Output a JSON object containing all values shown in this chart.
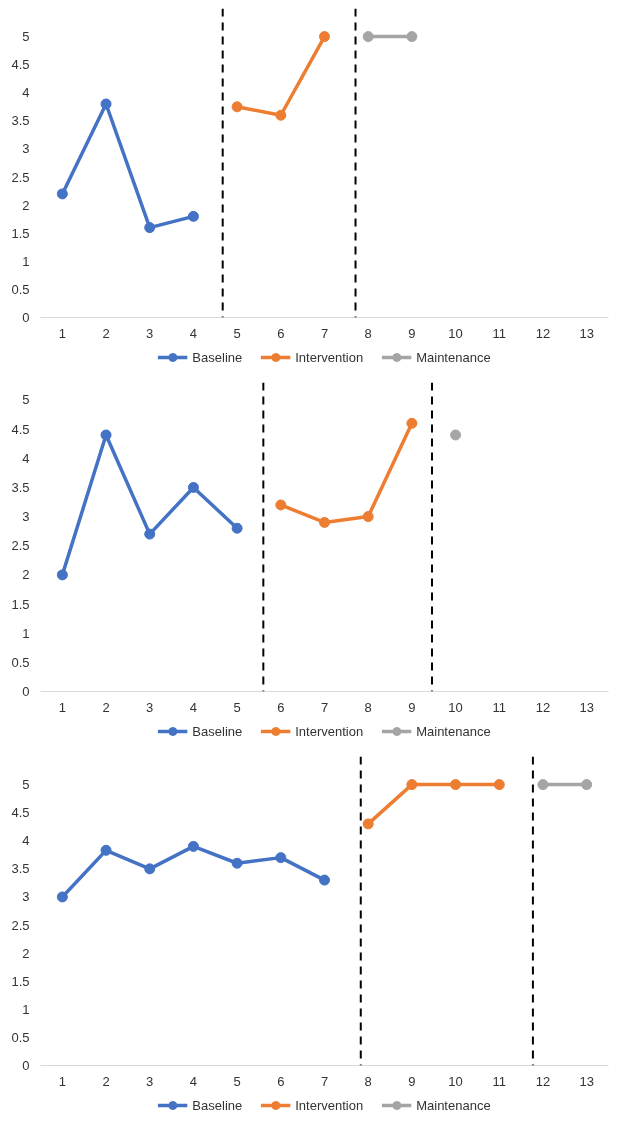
{
  "chart_data": [
    {
      "type": "line",
      "xlim": [
        0.5,
        13.5
      ],
      "xticks": [
        1,
        2,
        3,
        4,
        5,
        6,
        7,
        8,
        9,
        10,
        11,
        12,
        13
      ],
      "ylim": [
        0,
        5.5
      ],
      "yticks": [
        0,
        0.5,
        1,
        1.5,
        2,
        2.5,
        3,
        3.5,
        4,
        4.5,
        5
      ],
      "grid": false,
      "legend": "bottom",
      "marker": "circle",
      "line_style": "solid",
      "series": [
        {
          "name": "Baseline",
          "color": "#4472c4",
          "x": [
            1,
            2,
            3,
            4
          ],
          "values": [
            2.2,
            3.8,
            1.6,
            1.8
          ]
        },
        {
          "name": "Intervention",
          "color": "#ed7d31",
          "x": [
            5,
            6,
            7
          ],
          "values": [
            3.75,
            3.6,
            5
          ]
        },
        {
          "name": "Maintenance",
          "color": "#a5a5a5",
          "x": [
            8,
            9
          ],
          "values": [
            5,
            5
          ]
        }
      ],
      "ref_lines": [
        {
          "axis": "x",
          "value": 4.67,
          "color": "#000000",
          "line_style": "dashed"
        },
        {
          "axis": "x",
          "value": 7.71,
          "color": "#000000",
          "line_style": "dashed"
        }
      ]
    },
    {
      "type": "line",
      "xlim": [
        0.5,
        13.5
      ],
      "xticks": [
        1,
        2,
        3,
        4,
        5,
        6,
        7,
        8,
        9,
        10,
        11,
        12,
        13
      ],
      "ylim": [
        0,
        5.3
      ],
      "yticks": [
        0,
        0.5,
        1,
        1.5,
        2,
        2.5,
        3,
        3.5,
        4,
        4.5,
        5
      ],
      "grid": false,
      "legend": "bottom",
      "marker": "circle",
      "line_style": "solid",
      "series": [
        {
          "name": "Baseline",
          "color": "#4472c4",
          "x": [
            1,
            2,
            3,
            4,
            5
          ],
          "values": [
            2,
            4.4,
            2.7,
            3.5,
            2.8
          ]
        },
        {
          "name": "Intervention",
          "color": "#ed7d31",
          "x": [
            6,
            7,
            8,
            9
          ],
          "values": [
            3.2,
            2.9,
            3,
            4.6
          ]
        },
        {
          "name": "Maintenance",
          "color": "#a5a5a5",
          "x": [
            10
          ],
          "values": [
            4.4
          ]
        }
      ],
      "ref_lines": [
        {
          "axis": "x",
          "value": 5.6,
          "color": "#000000",
          "line_style": "dashed"
        },
        {
          "axis": "x",
          "value": 9.46,
          "color": "#000000",
          "line_style": "dashed"
        }
      ]
    },
    {
      "type": "line",
      "xlim": [
        0.5,
        13.5
      ],
      "xticks": [
        1,
        2,
        3,
        4,
        5,
        6,
        7,
        8,
        9,
        10,
        11,
        12,
        13
      ],
      "ylim": [
        0,
        5.5
      ],
      "yticks": [
        0,
        0.5,
        1,
        1.5,
        2,
        2.5,
        3,
        3.5,
        4,
        4.5,
        5
      ],
      "grid": false,
      "legend": "bottom",
      "marker": "circle",
      "line_style": "solid",
      "series": [
        {
          "name": "Baseline",
          "color": "#4472c4",
          "x": [
            1,
            2,
            3,
            4,
            5,
            6,
            7
          ],
          "values": [
            3,
            3.83,
            3.5,
            3.9,
            3.6,
            3.7,
            3.3
          ]
        },
        {
          "name": "Intervention",
          "color": "#ed7d31",
          "x": [
            8,
            9,
            10,
            11
          ],
          "values": [
            4.3,
            5,
            5,
            5
          ]
        },
        {
          "name": "Maintenance",
          "color": "#a5a5a5",
          "x": [
            12,
            13
          ],
          "values": [
            5,
            5
          ]
        }
      ],
      "ref_lines": [
        {
          "axis": "x",
          "value": 7.83,
          "color": "#000000",
          "line_style": "dashed"
        },
        {
          "axis": "x",
          "value": 11.77,
          "color": "#000000",
          "line_style": "dashed"
        }
      ]
    }
  ]
}
